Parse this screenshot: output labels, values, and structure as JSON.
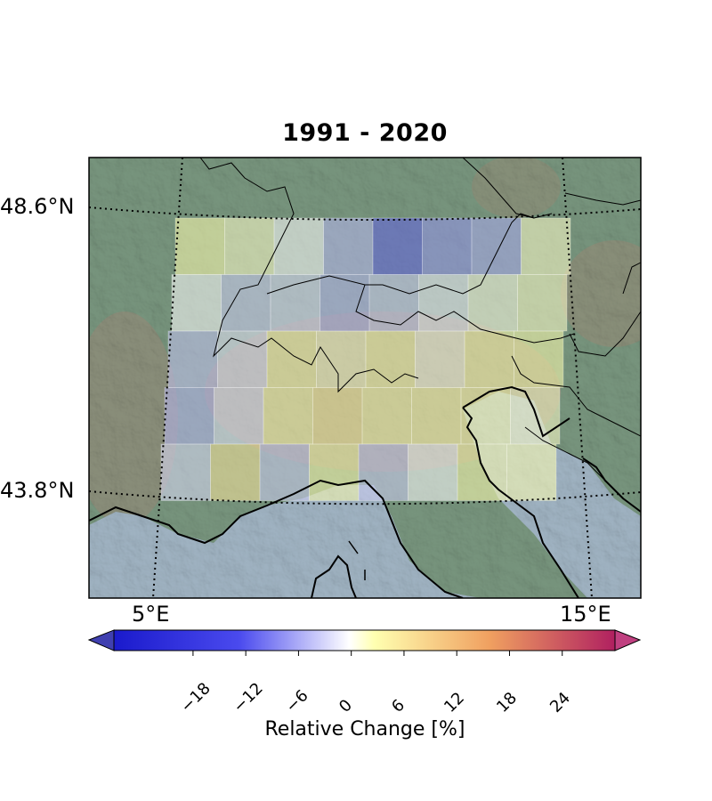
{
  "title": "1991 - 2020",
  "lat_labels": [
    "48.6°N",
    "43.8°N"
  ],
  "lon_labels": [
    "5°E",
    "15°E"
  ],
  "colorbar": {
    "label": "Relative Change [%]",
    "ticks": [
      "−18",
      "−12",
      "−6",
      "0",
      "6",
      "12",
      "18",
      "24"
    ],
    "tick_values": [
      -18,
      -12,
      -6,
      0,
      6,
      12,
      18,
      24
    ],
    "range": [
      -27,
      30
    ],
    "colors": {
      "neg_end": "#2a2ad8",
      "mid": "#ffffff",
      "low_pos": "#ffffb0",
      "mid_pos": "#f2a460",
      "pos_end": "#c0306a"
    }
  },
  "grid_values": [
    [
      4,
      2,
      0,
      -6,
      -13,
      -9,
      -7,
      2
    ],
    [
      0,
      -4,
      -3,
      -6,
      -4,
      -1,
      1,
      2
    ],
    [
      -5,
      -2,
      4,
      2,
      3,
      1,
      4,
      6
    ],
    [
      -6,
      -2,
      5,
      8,
      3,
      4,
      3,
      2
    ],
    [
      -3,
      9,
      -4,
      3,
      -4,
      0,
      5,
      3
    ]
  ]
}
